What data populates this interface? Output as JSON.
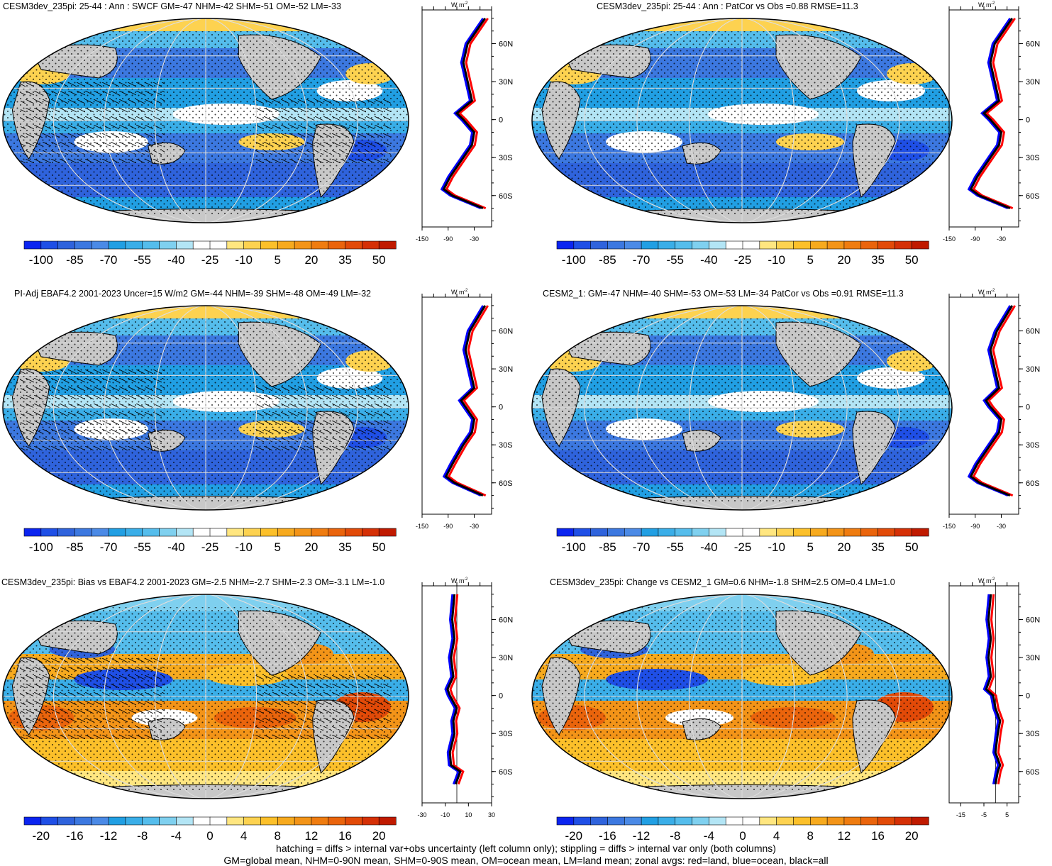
{
  "panels": [
    {
      "title": "CESM3dev_235pi: 25-44 : Ann : SWCF GM=-47 NHM=-42 SHM=-51 OM=-52 LM=-33",
      "mode": "abs",
      "hatch": true,
      "colorbar": {
        "labels": [
          "-100",
          "-85",
          "-70",
          "-55",
          "-40",
          "-25",
          "-10",
          "5",
          "20",
          "35",
          "50"
        ]
      },
      "zonal": {
        "units_label": "W m",
        "units_sup": "-2",
        "xticks": [
          "-150",
          "-90",
          "-30"
        ],
        "xlim": [
          -150,
          10
        ],
        "zero_line": false,
        "lat_labels": [
          "60N",
          "30N",
          "0",
          "30S",
          "60S"
        ]
      }
    },
    {
      "title": "CESM3dev_235pi: 25-44 : Ann : PatCor vs Obs =0.88 RMSE=11.3",
      "mode": "abs",
      "hatch": false,
      "colorbar": {
        "labels": [
          "-100",
          "-85",
          "-70",
          "-55",
          "-40",
          "-25",
          "-10",
          "5",
          "20",
          "35",
          "50"
        ]
      },
      "zonal": {
        "units_label": "W m",
        "units_sup": "-2",
        "xticks": [
          "-150",
          "-90",
          "-30"
        ],
        "xlim": [
          -150,
          10
        ],
        "zero_line": false,
        "lat_labels": [
          "60N",
          "30N",
          "0",
          "30S",
          "60S"
        ]
      }
    },
    {
      "title": "PI-Adj EBAF4.2 2001-2023 Uncer=15 W/m2 GM=-44 NHM=-39 SHM=-48 OM=-49 LM=-32",
      "mode": "abs",
      "hatch": true,
      "colorbar": {
        "labels": [
          "-100",
          "-85",
          "-70",
          "-55",
          "-40",
          "-25",
          "-10",
          "5",
          "20",
          "35",
          "50"
        ]
      },
      "zonal": {
        "units_label": "W m",
        "units_sup": "-2",
        "xticks": [
          "-150",
          "-90",
          "-30"
        ],
        "xlim": [
          -150,
          10
        ],
        "zero_line": false,
        "lat_labels": [
          "60N",
          "30N",
          "0",
          "30S",
          "60S"
        ]
      }
    },
    {
      "title": "CESM2_1: GM=-47 NHM=-40 SHM=-53 OM=-53 LM=-34 PatCor vs Obs =0.91 RMSE=11.3",
      "mode": "abs",
      "hatch": false,
      "colorbar": {
        "labels": [
          "-100",
          "-85",
          "-70",
          "-55",
          "-40",
          "-25",
          "-10",
          "5",
          "20",
          "35",
          "50"
        ]
      },
      "zonal": {
        "units_label": "W m",
        "units_sup": "-2",
        "xticks": [
          "-150",
          "-90",
          "-30"
        ],
        "xlim": [
          -150,
          10
        ],
        "zero_line": false,
        "lat_labels": [
          "60N",
          "30N",
          "0",
          "30S",
          "60S"
        ]
      }
    },
    {
      "title": "CESM3dev_235pi: Bias vs EBAF4.2 2001-2023 GM=-2.5 NHM=-2.7 SHM=-2.3 OM=-3.1 LM=-1.0",
      "mode": "diff",
      "hatch": true,
      "colorbar": {
        "labels": [
          "-20",
          "-16",
          "-12",
          "-8",
          "-4",
          "0",
          "4",
          "8",
          "12",
          "16",
          "20"
        ]
      },
      "zonal": {
        "units_label": "W m",
        "units_sup": "-2",
        "xticks": [
          "-30",
          "-10",
          "10",
          "30"
        ],
        "xlim": [
          -30,
          30
        ],
        "zero_line": true,
        "lat_labels": [
          "60N",
          "30N",
          "0",
          "30S",
          "60S"
        ]
      }
    },
    {
      "title": "CESM3dev_235pi: Change vs CESM2_1 GM=0.6 NHM=-1.8 SHM=2.5 OM=0.4 LM=1.0",
      "mode": "diff",
      "hatch": false,
      "colorbar": {
        "labels": [
          "-20",
          "-16",
          "-12",
          "-8",
          "-4",
          "0",
          "4",
          "8",
          "12",
          "16",
          "20"
        ]
      },
      "zonal": {
        "units_label": "W m",
        "units_sup": "-2",
        "xticks": [
          "-15",
          "-5",
          "5"
        ],
        "xlim": [
          -20,
          10
        ],
        "zero_line": true,
        "lat_labels": [
          "60N",
          "30N",
          "0",
          "30S",
          "60S"
        ]
      }
    }
  ],
  "colors": {
    "abs_scale": [
      "#0b24f0",
      "#1f4fe6",
      "#2f63dc",
      "#3c78e0",
      "#4b8ae6",
      "#219fe3",
      "#3aaee8",
      "#55bdec",
      "#7fd0ef",
      "#b3e5f5",
      "#ffffff",
      "#ffffff",
      "#ffe680",
      "#fdd250",
      "#fcc02a",
      "#f7aa1e",
      "#f39418",
      "#ef7c10",
      "#ea640c",
      "#e24a08",
      "#d53006",
      "#c01a00"
    ],
    "diff_scale": [
      "#0b24f0",
      "#1f4fe6",
      "#2f63dc",
      "#3c78e0",
      "#4b8ae6",
      "#219fe3",
      "#3aaee8",
      "#55bdec",
      "#7fd0ef",
      "#b3e5f5",
      "#ffffff",
      "#ffffff",
      "#ffe680",
      "#fdd250",
      "#fcc02a",
      "#f7aa1e",
      "#f39418",
      "#ef7c10",
      "#ea640c",
      "#e24a08",
      "#d53006",
      "#c01a00"
    ],
    "land_gray": "#c8c8c8",
    "zonal_land": "#ff0000",
    "zonal_ocean": "#0000ff",
    "zonal_all": "#000000"
  },
  "footer": {
    "line1": "hatching = diffs > internal var+obs uncertainty (left column only); stippling = diffs > internal var only (both columns)",
    "line2": "GM=global mean, NHM=0-90N mean, SHM=0-90S mean, OM=ocean mean, LM=land mean; zonal avgs: red=land, blue=ocean, black=all"
  },
  "chart_data": [
    {
      "type": "heatmap",
      "title": "CESM3dev_235pi: 25-44 : Ann : SWCF GM=-47 NHM=-42 SHM=-51 OM=-52 LM=-33",
      "colorbar_range": [
        -100,
        50
      ],
      "units": "W m-2",
      "zonal_mean": {
        "lat": [
          80,
          60,
          45,
          30,
          15,
          5,
          0,
          -10,
          -20,
          -30,
          -45,
          -55,
          -60,
          -70
        ],
        "all": [
          -5,
          -45,
          -55,
          -45,
          -35,
          -70,
          -55,
          -30,
          -35,
          -55,
          -85,
          -100,
          -80,
          -10
        ]
      }
    },
    {
      "type": "heatmap",
      "title": "CESM3dev_235pi: 25-44 : Ann : PatCor vs Obs =0.88 RMSE=11.3",
      "colorbar_range": [
        -100,
        50
      ],
      "units": "W m-2",
      "zonal_mean": {
        "lat": [
          80,
          60,
          45,
          30,
          15,
          5,
          0,
          -10,
          -20,
          -30,
          -45,
          -55,
          -60,
          -70
        ],
        "all": [
          -5,
          -45,
          -55,
          -45,
          -35,
          -70,
          -55,
          -30,
          -35,
          -55,
          -85,
          -100,
          -80,
          -10
        ]
      }
    },
    {
      "type": "heatmap",
      "title": "PI-Adj EBAF4.2 2001-2023 Uncer=15 W/m2 GM=-44 NHM=-39 SHM=-48 OM=-49 LM=-32",
      "colorbar_range": [
        -100,
        50
      ],
      "units": "W m-2",
      "zonal_mean": {
        "lat": [
          80,
          60,
          45,
          30,
          15,
          5,
          0,
          -10,
          -20,
          -30,
          -45,
          -55,
          -60,
          -70
        ],
        "all": [
          -5,
          -40,
          -50,
          -40,
          -30,
          -60,
          -50,
          -30,
          -35,
          -55,
          -80,
          -95,
          -75,
          -10
        ]
      }
    },
    {
      "type": "heatmap",
      "title": "CESM2_1: GM=-47 NHM=-40 SHM=-53 OM=-53 LM=-34 PatCor vs Obs =0.91 RMSE=11.3",
      "colorbar_range": [
        -100,
        50
      ],
      "units": "W m-2",
      "zonal_mean": {
        "lat": [
          80,
          60,
          45,
          30,
          15,
          5,
          0,
          -10,
          -20,
          -30,
          -45,
          -55,
          -60,
          -70
        ],
        "all": [
          -5,
          -40,
          -55,
          -45,
          -35,
          -65,
          -55,
          -30,
          -35,
          -55,
          -85,
          -100,
          -80,
          -10
        ]
      }
    },
    {
      "type": "heatmap",
      "title": "CESM3dev_235pi: Bias vs EBAF4.2 2001-2023 GM=-2.5 NHM=-2.7 SHM=-2.3 OM=-3.1 LM=-1.0",
      "colorbar_range": [
        -20,
        20
      ],
      "units": "W m-2",
      "zonal_mean": {
        "lat": [
          80,
          60,
          45,
          30,
          15,
          5,
          0,
          -10,
          -20,
          -30,
          -45,
          -55,
          -60,
          -70
        ],
        "all": [
          -2,
          -4,
          -2,
          -5,
          -3,
          -8,
          -6,
          0,
          -3,
          -2,
          -6,
          -5,
          3,
          -1
        ]
      }
    },
    {
      "type": "heatmap",
      "title": "CESM3dev_235pi: Change vs CESM2_1 GM=0.6 NHM=-1.8 SHM=2.5 OM=0.4 LM=1.0",
      "colorbar_range": [
        -20,
        20
      ],
      "units": "W m-2",
      "zonal_mean": {
        "lat": [
          80,
          60,
          45,
          30,
          15,
          5,
          0,
          -10,
          -20,
          -30,
          -45,
          -55,
          -60,
          -70
        ],
        "all": [
          -2,
          -3,
          -2,
          -3,
          -2,
          -4,
          -1,
          0,
          2,
          1,
          0,
          2,
          1,
          0
        ]
      }
    }
  ]
}
